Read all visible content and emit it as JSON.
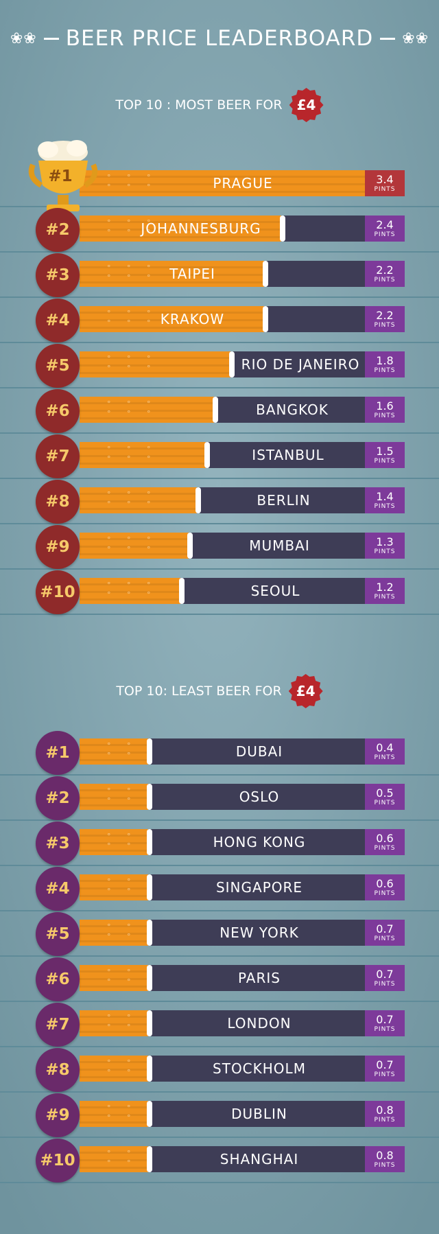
{
  "title": "BEER PRICE LEADERBOARD",
  "colors": {
    "background": "#8aa9b3",
    "stripe": "#5f8b99",
    "beer": "#f0921c",
    "empty": "#3e3d56",
    "most_badge": "#8f2a2a",
    "least_badge": "#6a2a6a",
    "first_value_box": "#b3363a",
    "value_box": "#7d3a9a",
    "seal": "#b8262b"
  },
  "icons": {
    "title_left": "wheat-icon",
    "title_right": "wheat-icon",
    "first_place": "trophy-icon"
  },
  "chart_data": [
    {
      "type": "bar",
      "title": "TOP 10 : MOST BEER FOR",
      "price": "£4",
      "unit": "PINTS",
      "ylim": [
        0,
        3.4
      ],
      "ranks": [
        "#1",
        "#2",
        "#3",
        "#4",
        "#5",
        "#6",
        "#7",
        "#8",
        "#9",
        "#10"
      ],
      "categories": [
        "PRAGUE",
        "JOHANNESBURG",
        "TAIPEI",
        "KRAKOW",
        "RIO DE JANEIRO",
        "BANGKOK",
        "ISTANBUL",
        "BERLIN",
        "MUMBAI",
        "SEOUL"
      ],
      "values": [
        3.4,
        2.4,
        2.2,
        2.2,
        1.8,
        1.6,
        1.5,
        1.4,
        1.3,
        1.2
      ],
      "value_labels": [
        "3.4",
        "2.4",
        "2.2",
        "2.2",
        "1.8",
        "1.6",
        "1.5",
        "1.4",
        "1.3",
        "1.2"
      ]
    },
    {
      "type": "bar",
      "title": "TOP 10: LEAST BEER FOR",
      "price": "£4",
      "unit": "PINTS",
      "ylim": [
        0,
        3.4
      ],
      "ranks": [
        "#1",
        "#2",
        "#3",
        "#4",
        "#5",
        "#6",
        "#7",
        "#8",
        "#9",
        "#10"
      ],
      "categories": [
        "DUBAI",
        "OSLO",
        "HONG KONG",
        "SINGAPORE",
        "NEW YORK",
        "PARIS",
        "LONDON",
        "STOCKHOLM",
        "DUBLIN",
        "SHANGHAI"
      ],
      "values": [
        0.4,
        0.5,
        0.6,
        0.6,
        0.7,
        0.7,
        0.7,
        0.7,
        0.8,
        0.8
      ],
      "value_labels": [
        "0.4",
        "0.5",
        "0.6",
        "0.6",
        "0.7",
        "0.7",
        "0.7",
        "0.7",
        "0.8",
        "0.8"
      ]
    }
  ]
}
